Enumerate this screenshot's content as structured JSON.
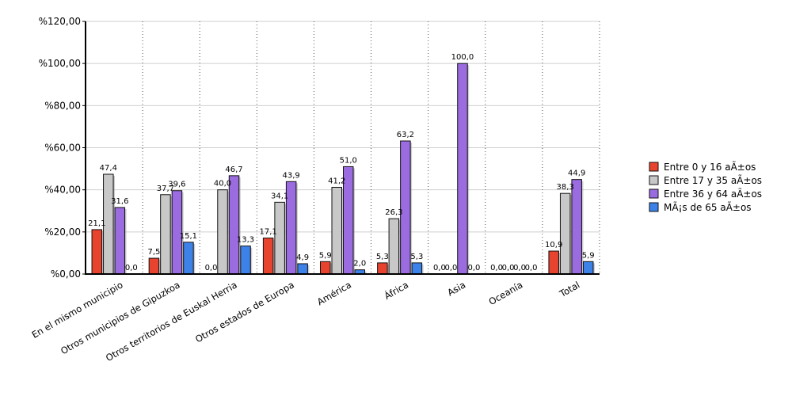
{
  "chart_data": {
    "type": "bar",
    "title": "",
    "xlabel": "",
    "ylabel": "",
    "ylim": [
      0,
      120
    ],
    "yticks": [
      0,
      20,
      40,
      60,
      80,
      100,
      120
    ],
    "ytick_labels": [
      "%0,00",
      "%20,00",
      "%40,00",
      "%60,00",
      "%80,00",
      "%100,00",
      "%120,00"
    ],
    "grid": "vertical-dotted-and-horizontal",
    "legend_position": "right",
    "categories": [
      "En el mismo municipio",
      "Otros municipios de Gipuzkoa",
      "Otros territorios de Euskal Herria",
      "Otros estados de Europa",
      "América",
      "África",
      "Asia",
      "Oceanía",
      "Total"
    ],
    "series": [
      {
        "name": "Entre 0 y 16 aÃ±os",
        "color": "#e8432e",
        "values": [
          21.1,
          7.5,
          0.0,
          17.1,
          5.9,
          5.3,
          0.0,
          0.0,
          10.9
        ],
        "labels": [
          "21,1",
          "7,5",
          "0,0",
          "17,1",
          "5,9",
          "5,3",
          "0,0",
          "0,0",
          "10,9"
        ]
      },
      {
        "name": "Entre 17 y 35 aÃ±os",
        "color": "#c8c8c8",
        "values": [
          47.4,
          37.7,
          40.0,
          34.1,
          41.2,
          26.3,
          0.0,
          0.0,
          38.3
        ],
        "labels": [
          "47,4",
          "37,7",
          "40,0",
          "34,1",
          "41,2",
          "26,3",
          "0,0",
          "0,0",
          "38,3"
        ]
      },
      {
        "name": "Entre 36 y 64 aÃ±os",
        "color": "#9b6be0",
        "values": [
          31.6,
          39.6,
          46.7,
          43.9,
          51.0,
          63.2,
          100.0,
          0.0,
          44.9
        ],
        "labels": [
          "31,6",
          "39,6",
          "46,7",
          "43,9",
          "51,0",
          "63,2",
          "100,0",
          "0,0",
          "44,9"
        ]
      },
      {
        "name": "MÃ¡s de 65 aÃ±os",
        "color": "#3d82e8",
        "values": [
          0.0,
          15.1,
          13.3,
          4.9,
          2.0,
          5.3,
          0.0,
          0.0,
          5.9
        ],
        "labels": [
          "0,0",
          "15,1",
          "13,3",
          "4,9",
          "2,0",
          "5,3",
          "0,0",
          "0,0",
          "5,9"
        ]
      }
    ]
  }
}
